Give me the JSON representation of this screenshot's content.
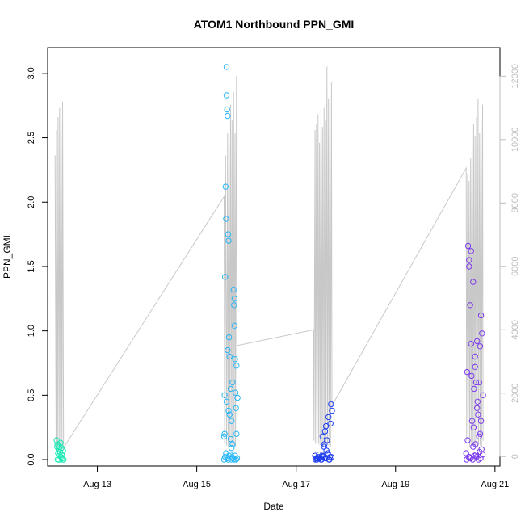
{
  "chart_data": {
    "type": "scatter",
    "title": "ATOM1 Northbound PPN_GMI",
    "xlabel": "Date",
    "ylabel": "PPN_GMI",
    "x_ticks": [
      "Aug 13",
      "Aug 15",
      "Aug 17",
      "Aug 19",
      "Aug 21"
    ],
    "x_tick_days": [
      13,
      15,
      17,
      19,
      21
    ],
    "xlim": [
      12.0,
      21.1
    ],
    "ylim": [
      -0.05,
      3.2
    ],
    "y_ticks": [
      "0.0",
      "0.5",
      "1.0",
      "1.5",
      "2.0",
      "2.5",
      "3.0"
    ],
    "y2lim": [
      -300,
      12900
    ],
    "y2_ticks": [
      "0",
      "2000",
      "4000",
      "6000",
      "8000",
      "10000",
      "12000"
    ],
    "colors": {
      "secondary_line": "#c8c8c8",
      "secondary_axis": "#bdbdbd",
      "cluster_12": "#1de9b6",
      "cluster_15": "#29b6f6",
      "cluster_17": "#1e3cf0",
      "cluster_20": "#7c3aed"
    },
    "series": [
      {
        "marker": "open-circle",
        "color_key": "cluster_12",
        "x": [
          12.18,
          12.19,
          12.2,
          12.21,
          12.22,
          12.23,
          12.24,
          12.25,
          12.26,
          12.27,
          12.28,
          12.29,
          12.3,
          12.31,
          12.32,
          12.2,
          12.24,
          12.28
        ],
        "y": [
          0.15,
          0.1,
          0.12,
          0.05,
          0.08,
          0.0,
          0.1,
          0.06,
          0.13,
          0.02,
          0.04,
          0.01,
          0.0,
          0.07,
          0.0,
          0.0,
          0.03,
          0.09
        ]
      },
      {
        "marker": "open-circle",
        "color_key": "cluster_15",
        "x": [
          15.55,
          15.56,
          15.57,
          15.58,
          15.59,
          15.6,
          15.6,
          15.61,
          15.62,
          15.63,
          15.64,
          15.65,
          15.66,
          15.68,
          15.7,
          15.72,
          15.74,
          15.75,
          15.76,
          15.77,
          15.78,
          15.79,
          15.8,
          15.82,
          15.55,
          15.57,
          15.59,
          15.61,
          15.63,
          15.65,
          15.67,
          15.69,
          15.71,
          15.73,
          15.75,
          15.77,
          15.79,
          15.81,
          15.56,
          15.6,
          15.64,
          15.68,
          15.72,
          15.76,
          15.8,
          15.62,
          15.66,
          15.7
        ],
        "y": [
          0.18,
          0.5,
          1.42,
          2.12,
          1.87,
          3.05,
          2.83,
          2.72,
          2.67,
          1.75,
          1.7,
          0.95,
          0.8,
          0.55,
          0.3,
          0.6,
          1.32,
          1.2,
          1.04,
          0.78,
          0.52,
          0.4,
          0.2,
          0.48,
          0.0,
          0.02,
          0.05,
          0.01,
          0.0,
          0.03,
          0.04,
          0.0,
          0.02,
          0.01,
          0.0,
          0.03,
          0.0,
          0.01,
          0.2,
          0.45,
          0.38,
          0.16,
          0.12,
          1.25,
          0.73,
          0.85,
          0.35,
          0.09
        ]
      },
      {
        "marker": "open-circle",
        "color_key": "cluster_17",
        "x": [
          17.38,
          17.4,
          17.42,
          17.44,
          17.46,
          17.48,
          17.5,
          17.52,
          17.54,
          17.56,
          17.58,
          17.6,
          17.62,
          17.64,
          17.66,
          17.68,
          17.7,
          17.72,
          17.39,
          17.43,
          17.47,
          17.51,
          17.55,
          17.59,
          17.63,
          17.67,
          17.71,
          17.53,
          17.57,
          17.61,
          17.65,
          17.69
        ],
        "y": [
          0.03,
          0.01,
          0.0,
          0.02,
          0.04,
          0.01,
          0.0,
          0.03,
          0.02,
          0.1,
          0.22,
          0.26,
          0.15,
          0.05,
          0.0,
          0.02,
          0.43,
          0.38,
          0.0,
          0.01,
          0.02,
          0.0,
          0.03,
          0.01,
          0.04,
          0.0,
          0.02,
          0.18,
          0.12,
          0.07,
          0.33,
          0.28
        ]
      },
      {
        "marker": "open-circle",
        "color_key": "cluster_20",
        "x": [
          20.42,
          20.44,
          20.46,
          20.48,
          20.5,
          20.52,
          20.54,
          20.56,
          20.58,
          20.6,
          20.62,
          20.64,
          20.66,
          20.68,
          20.7,
          20.72,
          20.74,
          20.76,
          20.43,
          20.47,
          20.51,
          20.55,
          20.59,
          20.63,
          20.67,
          20.71,
          20.75,
          20.45,
          20.49,
          20.53,
          20.57,
          20.61,
          20.65,
          20.69,
          20.73,
          20.52,
          20.56,
          20.6,
          20.64,
          20.68,
          20.72,
          20.48,
          20.62,
          20.7
        ],
        "y": [
          0.05,
          0.68,
          1.66,
          1.5,
          1.2,
          0.9,
          0.3,
          0.1,
          0.55,
          0.8,
          0.6,
          0.4,
          0.35,
          0.6,
          0.2,
          1.12,
          0.98,
          0.5,
          0.0,
          0.02,
          0.01,
          0.0,
          0.03,
          0.02,
          0.0,
          0.01,
          0.04,
          0.15,
          0.02,
          0.65,
          0.25,
          0.12,
          0.45,
          0.06,
          0.08,
          1.62,
          1.38,
          0.72,
          0.92,
          0.18,
          0.3,
          1.55,
          0.04,
          0.88
        ]
      }
    ],
    "secondary_series": {
      "type": "line",
      "color_key": "secondary_line",
      "x": [
        12.15,
        12.17,
        12.18,
        12.2,
        12.21,
        12.23,
        12.24,
        12.26,
        12.27,
        12.29,
        12.3,
        12.32,
        12.33,
        15.55,
        15.56,
        15.58,
        15.6,
        15.62,
        15.63,
        15.65,
        15.66,
        15.68,
        15.69,
        15.71,
        15.72,
        15.74,
        15.75,
        15.77,
        15.78,
        15.8,
        15.81,
        17.35,
        17.36,
        17.38,
        17.39,
        17.41,
        17.42,
        17.44,
        17.45,
        17.47,
        17.48,
        17.5,
        17.51,
        17.53,
        17.54,
        17.56,
        17.57,
        17.59,
        17.6,
        17.62,
        17.63,
        17.65,
        17.66,
        17.68,
        17.69,
        17.71,
        17.72,
        20.42,
        20.43,
        20.45,
        20.46,
        20.48,
        20.49,
        20.51,
        20.52,
        20.54,
        20.55,
        20.57,
        20.58,
        20.6,
        20.61,
        20.63,
        20.64,
        20.66,
        20.67,
        20.69,
        20.7,
        20.72,
        20.73,
        20.75,
        20.76
      ],
      "y": [
        9500,
        200,
        10300,
        200,
        10700,
        200,
        11000,
        200,
        10500,
        200,
        11200,
        200,
        300,
        8200,
        400,
        9500,
        350,
        10200,
        300,
        9800,
        400,
        11100,
        350,
        10600,
        300,
        11500,
        350,
        10200,
        300,
        12000,
        3500,
        4000,
        500,
        10300,
        400,
        10500,
        300,
        10800,
        400,
        9900,
        350,
        11200,
        400,
        10400,
        300,
        11000,
        350,
        10600,
        300,
        12300,
        400,
        11300,
        350,
        10200,
        300,
        11800,
        1600,
        9100,
        500,
        8900,
        400,
        8700,
        300,
        9400,
        350,
        9900,
        400,
        10500,
        300,
        10100,
        350,
        10700,
        300,
        11300,
        400,
        10200,
        350,
        10600,
        300,
        11100,
        500
      ]
    }
  }
}
